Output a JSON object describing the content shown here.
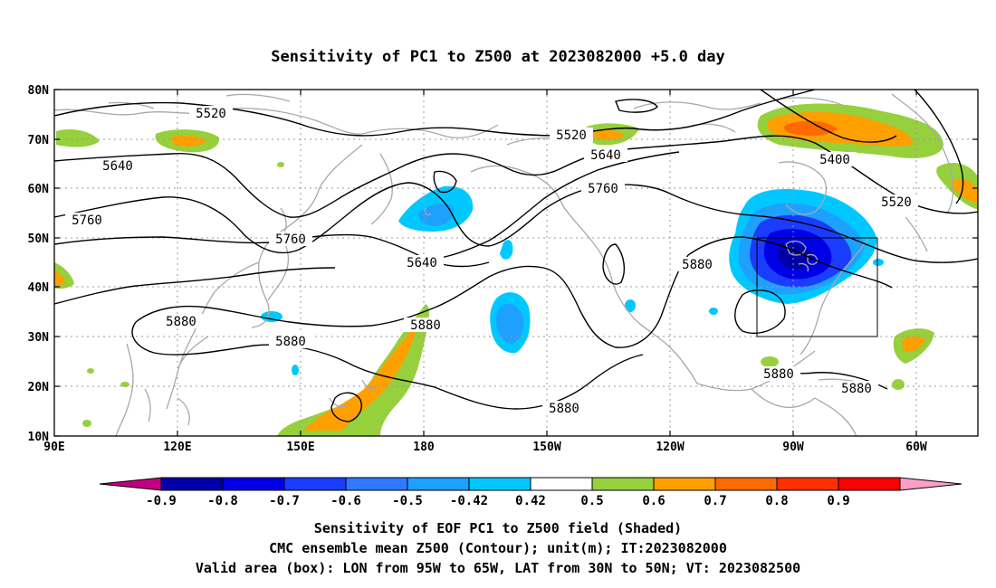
{
  "title": "Sensitivity of PC1 to Z500 at 2023082000 +5.0 day",
  "lat_labels": [
    "80N",
    "70N",
    "60N",
    "50N",
    "40N",
    "30N",
    "20N",
    "10N"
  ],
  "lon_labels": [
    "90E",
    "120E",
    "150E",
    "180",
    "150W",
    "120W",
    "90W",
    "60W"
  ],
  "contour_labels": {
    "c5520a": "5520",
    "c5520b": "5520",
    "c5520c": "5520",
    "c5640a": "5640",
    "c5640b": "5640",
    "c5640c": "5640",
    "c5760a": "5760",
    "c5760b": "5760",
    "c5760c": "5760",
    "c5880a": "5880",
    "c5880b": "5880",
    "c5880c": "5880",
    "c5880d": "5880",
    "c5880e": "5880",
    "c5880f": "5880",
    "c5880g": "5880",
    "c5400": "5400"
  },
  "colorbar": {
    "labels": [
      "-0.9",
      "-0.8",
      "-0.7",
      "-0.6",
      "-0.5",
      "-0.42",
      "0.42",
      "0.5",
      "0.6",
      "0.7",
      "0.8",
      "0.9"
    ],
    "colors": {
      "below": "#c0007f",
      "above": "#ff9fc8",
      "bins": [
        "#0000a8",
        "#0000e6",
        "#1a3cff",
        "#2f78ff",
        "#1ea0ff",
        "#00c8ff",
        "#ffffff",
        "#96d03c",
        "#ffa000",
        "#ff6a00",
        "#ff3000",
        "#ff0000"
      ]
    }
  },
  "captions": {
    "line1": "Sensitivity of EOF PC1 to Z500 field (Shaded)",
    "line2": "CMC ensemble mean Z500 (Contour); unit(m); IT:2023082000",
    "line3": "Valid area (box): LON from 95W to 65W, LAT from 30N to 50N; VT: 2023082500"
  }
}
